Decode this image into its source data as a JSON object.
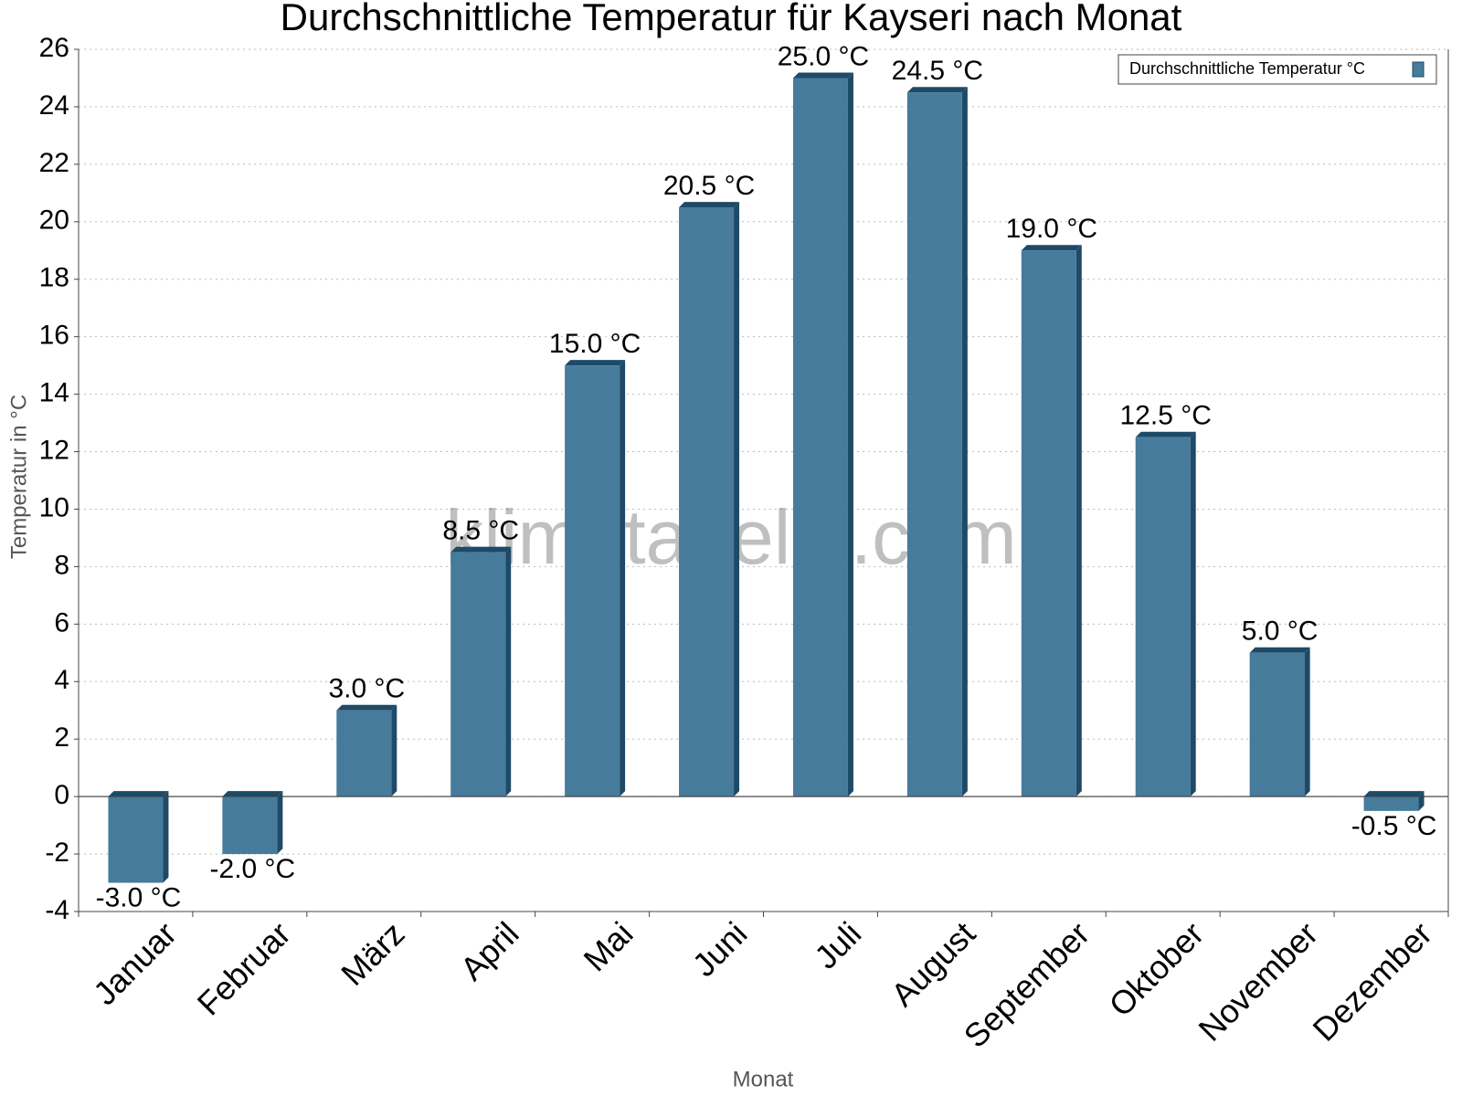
{
  "chart_data": {
    "type": "bar",
    "title": "Durchschnittliche Temperatur für Kayseri nach Monat",
    "x_label": "Monat",
    "y_label": "Temperatur in °C",
    "watermark": "klimatabelle.com",
    "categories": [
      "Januar",
      "Februar",
      "März",
      "April",
      "Mai",
      "Juni",
      "Juli",
      "August",
      "September",
      "Oktober",
      "November",
      "Dezember"
    ],
    "series": [
      {
        "name": "Durchschnittliche Temperatur °C",
        "color": "#467b9c",
        "values": [
          -3,
          -2,
          3,
          8.5,
          15,
          20.5,
          25,
          24.5,
          19,
          12.5,
          5,
          -0.5
        ],
        "value_labels": [
          "-3.0 °C",
          "-2.0 °C",
          "3.0 °C",
          "8.5 °C",
          "15.0 °C",
          "20.5 °C",
          "25.0 °C",
          "24.5 °C",
          "19.0 °C",
          "12.5 °C",
          "5.0 °C",
          "-0.5 °C"
        ]
      }
    ],
    "ylim": [
      -4,
      26
    ],
    "yticks": [
      -4,
      -2,
      0,
      2,
      4,
      6,
      8,
      10,
      12,
      14,
      16,
      18,
      20,
      22,
      24,
      26
    ],
    "grid": true,
    "legend": "top-right"
  }
}
